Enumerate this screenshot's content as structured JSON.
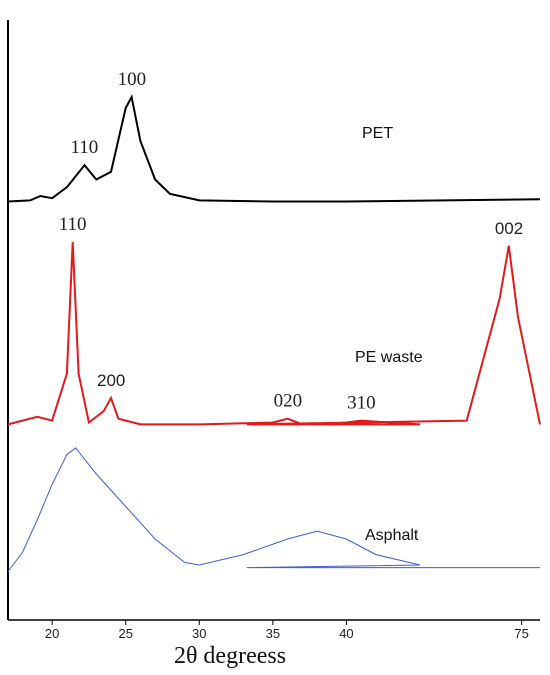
{
  "chart_data": {
    "type": "line",
    "xlabel": "2θ degreess",
    "ylabel": "",
    "title": "",
    "x_ticks": [
      "20",
      "25",
      "30",
      "35",
      "40",
      "75"
    ],
    "series": [
      {
        "name": "PET",
        "color": "#000000",
        "x": [
          17,
          18.5,
          19.2,
          20,
          21,
          22.2,
          23,
          24,
          25,
          25.4,
          26,
          27,
          28,
          30,
          35,
          40,
          76
        ],
        "y": [
          0.05,
          0.06,
          0.1,
          0.08,
          0.18,
          0.38,
          0.25,
          0.32,
          0.9,
          1.0,
          0.6,
          0.25,
          0.12,
          0.06,
          0.05,
          0.05,
          0.07
        ],
        "peak_labels": [
          {
            "text": "110",
            "x": 22.2,
            "y": 0.38
          },
          {
            "text": "100",
            "x": 25.4,
            "y": 1.0
          }
        ]
      },
      {
        "name": "PE waste",
        "color": "#e21a1a",
        "x": [
          17,
          19,
          20,
          21,
          21.4,
          21.8,
          22.5,
          23.5,
          24,
          24.5,
          26,
          30,
          35,
          36,
          37,
          40,
          41,
          45,
          60,
          72,
          73.8,
          74.3,
          74.8,
          76
        ],
        "y": [
          0.03,
          0.07,
          0.05,
          0.3,
          1.0,
          0.3,
          0.04,
          0.1,
          0.17,
          0.06,
          0.03,
          0.03,
          0.04,
          0.06,
          0.03,
          0.04,
          0.05,
          0.03,
          0.03,
          0.05,
          0.7,
          0.98,
          0.6,
          0.03
        ],
        "peak_labels": [
          {
            "text": "110",
            "x": 21.4,
            "y": 1.0
          },
          {
            "text": "200",
            "x": 24,
            "y": 0.17
          },
          {
            "text": "020",
            "x": 36,
            "y": 0.06
          },
          {
            "text": "310",
            "x": 41,
            "y": 0.05
          },
          {
            "text": "002",
            "x": 74.3,
            "y": 0.98
          }
        ]
      },
      {
        "name": "Asphalt",
        "color": "#3b5ee0",
        "x": [
          17,
          18,
          19,
          20,
          21,
          21.6,
          23,
          25,
          27,
          29,
          30,
          33,
          36,
          38,
          40,
          42,
          45,
          60,
          76
        ],
        "y": [
          0.05,
          0.2,
          0.45,
          0.72,
          0.95,
          1.0,
          0.8,
          0.55,
          0.3,
          0.12,
          0.1,
          0.18,
          0.3,
          0.36,
          0.3,
          0.18,
          0.1,
          0.08,
          0.08
        ],
        "peak_labels": []
      }
    ]
  }
}
